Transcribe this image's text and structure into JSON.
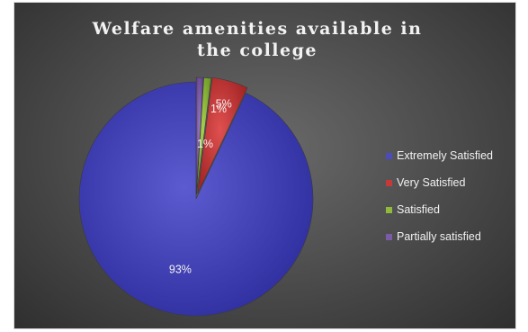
{
  "chart_data": {
    "type": "pie",
    "title": "Welfare amenities available in the college",
    "categories": [
      "Extremely Satisfied",
      "Very Satisfied",
      "Satisfied",
      "Partially satisfied"
    ],
    "values": [
      93,
      5,
      1,
      1
    ],
    "data_labels": [
      "93%",
      "5%",
      "1%",
      "1%"
    ],
    "colors": [
      "#4b4bbd",
      "#c43a3a",
      "#8fba3c",
      "#7b5aa6"
    ],
    "legend_position": "right"
  }
}
